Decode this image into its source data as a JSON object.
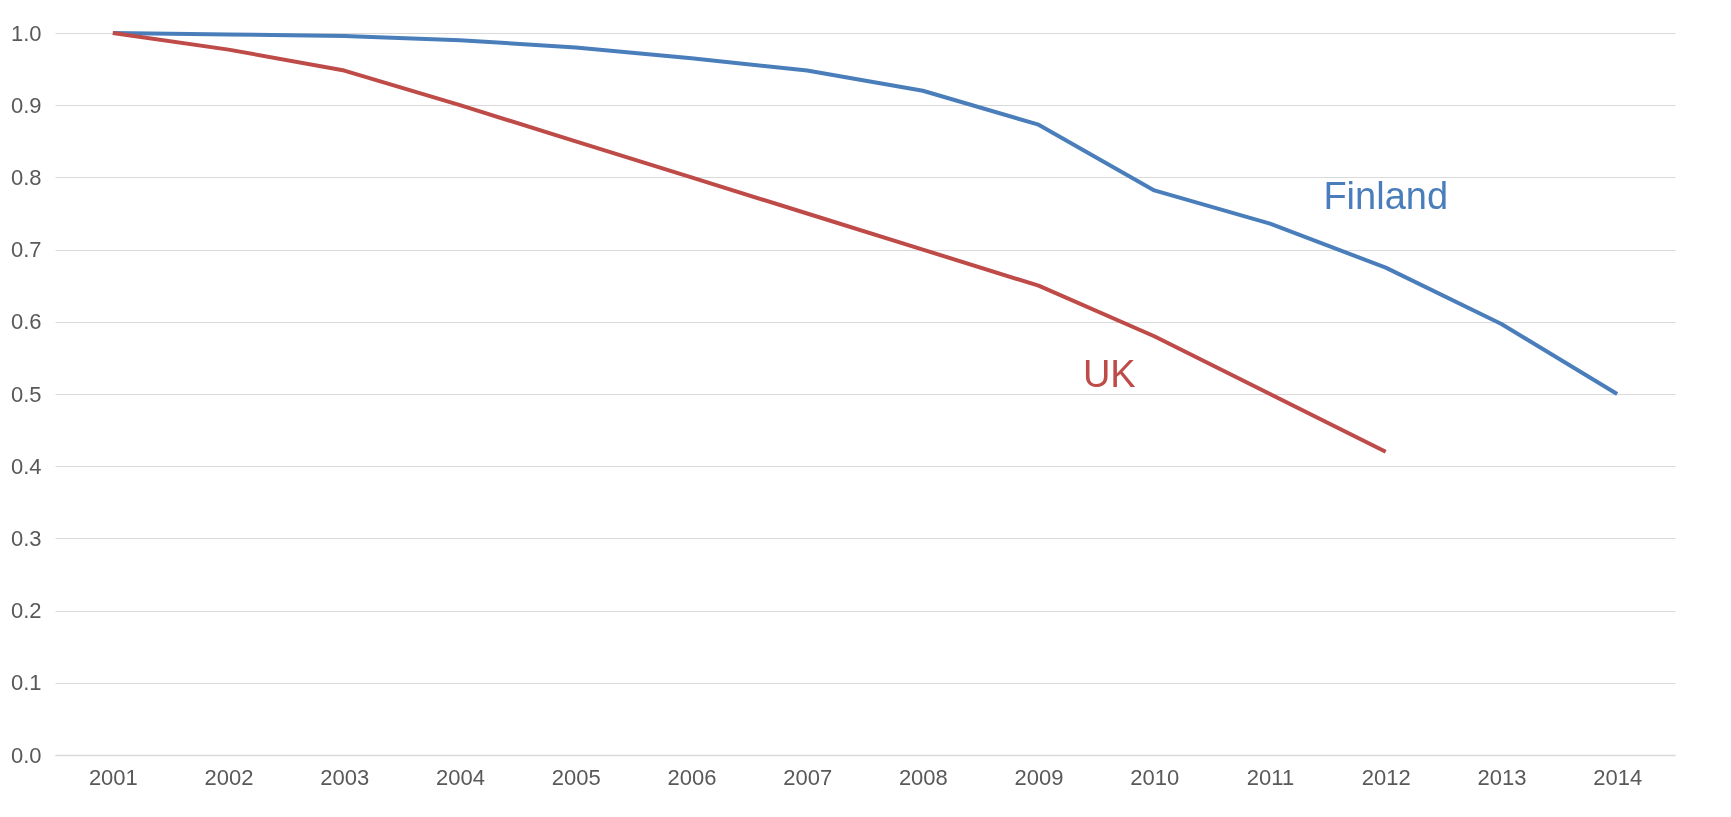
{
  "chart_data": {
    "type": "line",
    "categories": [
      "2001",
      "2002",
      "2003",
      "2004",
      "2005",
      "2006",
      "2007",
      "2008",
      "2009",
      "2010",
      "2011",
      "2012",
      "2013",
      "2014"
    ],
    "series": [
      {
        "name": "Finland",
        "color": "#4a7ebb",
        "values": [
          1.0,
          0.998,
          0.996,
          0.99,
          0.98,
          0.965,
          0.948,
          0.92,
          0.873,
          0.782,
          0.736,
          0.675,
          0.597,
          0.5
        ]
      },
      {
        "name": "UK",
        "color": "#be4b48",
        "values": [
          1.0,
          0.977,
          0.948,
          0.9,
          0.85,
          0.8,
          0.75,
          0.7,
          0.65,
          0.58,
          0.5,
          0.42,
          null,
          null
        ]
      }
    ],
    "ylim": [
      0,
      1
    ],
    "yticks": [
      {
        "value": 0,
        "label": "0.0"
      },
      0.1,
      0.2,
      0.3,
      0.4,
      0.5,
      0.6,
      0.7,
      0.8,
      0.9,
      {
        "value": 1,
        "label": "1.0"
      }
    ],
    "grid": "y",
    "marker": "none",
    "line_style": "solid"
  }
}
